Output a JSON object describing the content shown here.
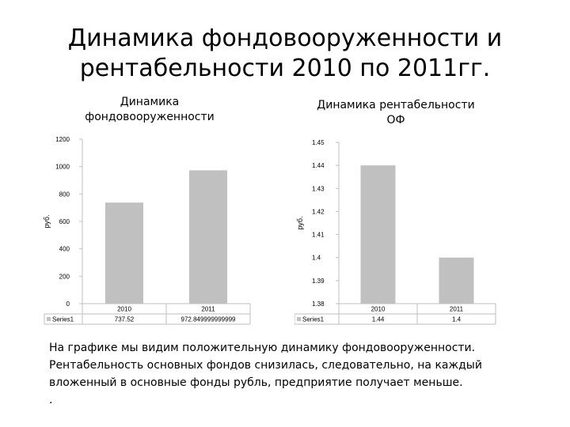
{
  "slide": {
    "title_line1": "Динамика фондовооруженности и",
    "title_line2": "рентабельности 2010 по 2011гг."
  },
  "chart_data": [
    {
      "type": "bar",
      "title_line1": "Динамика",
      "title_line2": "фондовооруженности",
      "ylabel": "руб.",
      "ylim": [
        0,
        1200
      ],
      "yticks": [
        "0",
        "200",
        "400",
        "600",
        "800",
        "1000",
        "1200"
      ],
      "categories": [
        "2010",
        "2011"
      ],
      "series": [
        {
          "name": "Series1",
          "values": [
            737.52,
            972.849999999999
          ],
          "labels": [
            "737.52",
            "972.849999999999"
          ]
        }
      ],
      "bar_color": "#c0c0c0",
      "grid": false,
      "legend": "data-table"
    },
    {
      "type": "bar",
      "title_line1": "Динамика рентабельности",
      "title_line2": "ОФ",
      "ylabel": "руб.",
      "ylim": [
        1.38,
        1.45
      ],
      "yticks": [
        "1.38",
        "1.39",
        "1.4",
        "1.41",
        "1.42",
        "1.43",
        "1.44",
        "1.45"
      ],
      "categories": [
        "2010",
        "2011"
      ],
      "series": [
        {
          "name": "Series1",
          "values": [
            1.44,
            1.4
          ],
          "labels": [
            "1.44",
            "1.4"
          ]
        }
      ],
      "bar_color": "#c0c0c0",
      "grid": false,
      "legend": "data-table"
    }
  ],
  "conclusion": {
    "line1": "На графике мы видим положительную динамику фондовооруженности.",
    "line2": "Рентабельность основных фондов снизилась, следовательно, на каждый",
    "line3": "вложенный в основные фонды рубль, предприятие получает меньше.",
    "line4": "."
  }
}
